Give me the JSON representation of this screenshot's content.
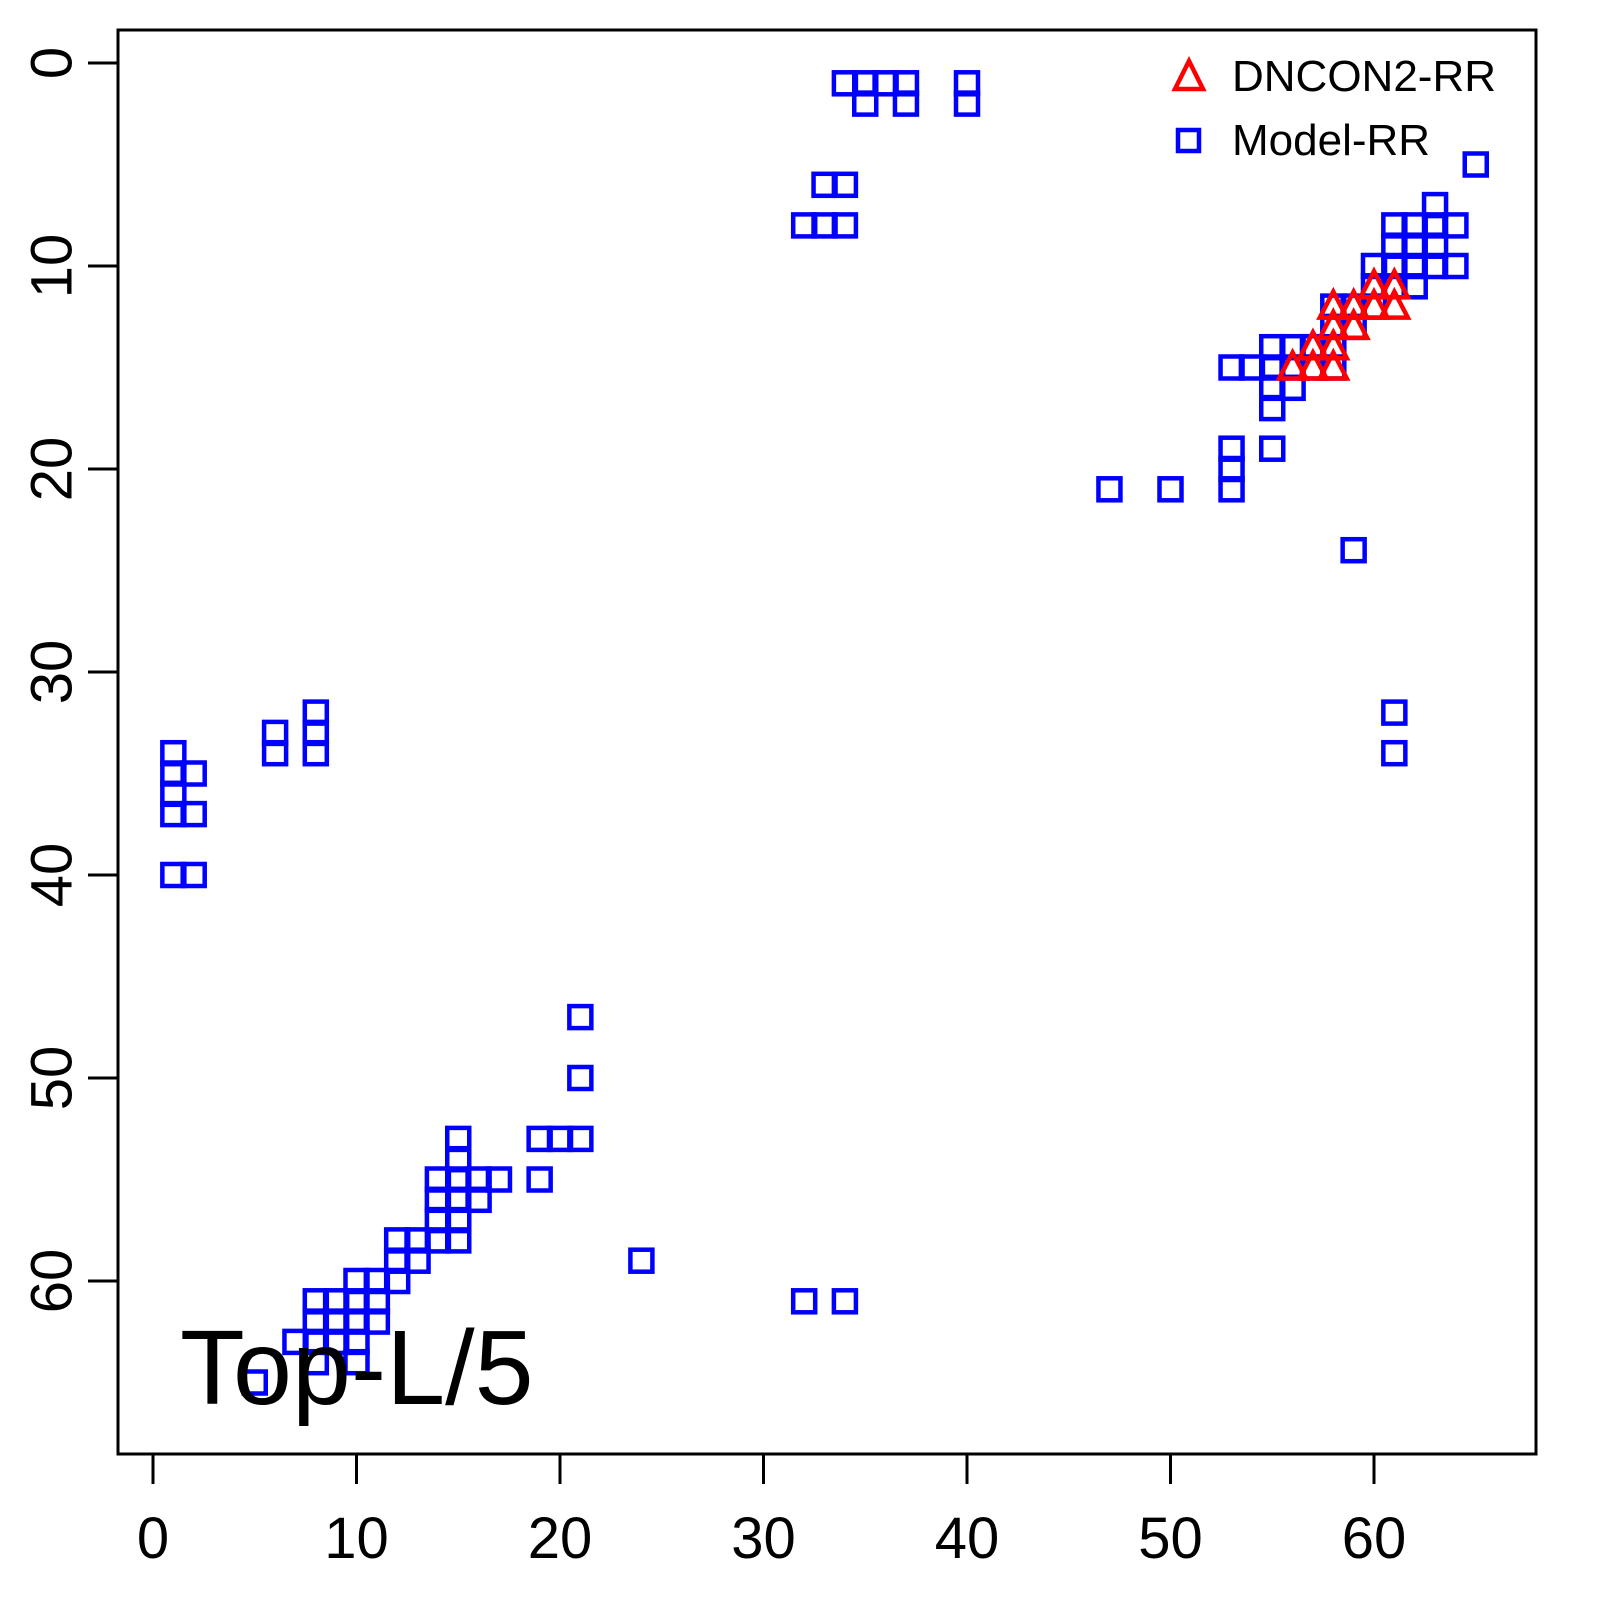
{
  "figure": {
    "title_label": "Top-L/5",
    "background_color": "#FFFFFF",
    "frame_color": "#000000"
  },
  "legend": {
    "position": "top-right",
    "items": [
      {
        "label": "DNCON2-RR",
        "marker": "triangle-open-icon",
        "color": "#FF0000"
      },
      {
        "label": "Model-RR",
        "marker": "square-open-icon",
        "color": "#0000FF"
      }
    ]
  },
  "axes": {
    "x_tick_labels": [
      "0",
      "10",
      "20",
      "30",
      "40",
      "50",
      "60"
    ],
    "y_tick_labels": [
      "0",
      "10",
      "20",
      "30",
      "40",
      "50",
      "60"
    ]
  },
  "chart_data": {
    "type": "scatter",
    "title": "Top-L/5",
    "xlabel": "",
    "ylabel": "",
    "x_ticks": [
      0,
      10,
      20,
      30,
      40,
      50,
      60
    ],
    "y_ticks": [
      0,
      10,
      20,
      30,
      40,
      50,
      60
    ],
    "xlim": [
      -1.7,
      68
    ],
    "ylim": [
      68.5,
      -1.6
    ],
    "y_axis_reversed": true,
    "grid": false,
    "legend_position": "top-right",
    "series": [
      {
        "name": "DNCON2-RR",
        "marker": "triangle",
        "color": "#FF0000",
        "points": [
          [
            60,
            11
          ],
          [
            61,
            11
          ],
          [
            58,
            12
          ],
          [
            59,
            12
          ],
          [
            60,
            12
          ],
          [
            61,
            12
          ],
          [
            58,
            13
          ],
          [
            59,
            13
          ],
          [
            57,
            14
          ],
          [
            58,
            14
          ],
          [
            56,
            15
          ],
          [
            57,
            15
          ],
          [
            58,
            15
          ]
        ]
      },
      {
        "name": "Model-RR",
        "marker": "square",
        "color": "#0000FF",
        "points": [
          [
            34,
            1
          ],
          [
            35,
            1
          ],
          [
            36,
            1
          ],
          [
            37,
            1
          ],
          [
            40,
            1
          ],
          [
            35,
            2
          ],
          [
            37,
            2
          ],
          [
            40,
            2
          ],
          [
            33,
            6
          ],
          [
            34,
            6
          ],
          [
            32,
            8
          ],
          [
            33,
            8
          ],
          [
            34,
            8
          ],
          [
            65,
            5
          ],
          [
            63,
            7
          ],
          [
            61,
            8
          ],
          [
            62,
            8
          ],
          [
            63,
            8
          ],
          [
            64,
            8
          ],
          [
            61,
            9
          ],
          [
            62,
            9
          ],
          [
            63,
            9
          ],
          [
            60,
            10
          ],
          [
            61,
            10
          ],
          [
            62,
            10
          ],
          [
            63,
            10
          ],
          [
            64,
            10
          ],
          [
            60,
            11
          ],
          [
            61,
            11
          ],
          [
            62,
            11
          ],
          [
            58,
            12
          ],
          [
            59,
            12
          ],
          [
            60,
            12
          ],
          [
            58,
            13
          ],
          [
            59,
            13
          ],
          [
            55,
            14
          ],
          [
            56,
            14
          ],
          [
            57,
            14
          ],
          [
            58,
            14
          ],
          [
            53,
            15
          ],
          [
            54,
            15
          ],
          [
            55,
            15
          ],
          [
            56,
            15
          ],
          [
            57,
            15
          ],
          [
            58,
            15
          ],
          [
            55,
            16
          ],
          [
            56,
            16
          ],
          [
            55,
            17
          ],
          [
            53,
            19
          ],
          [
            55,
            19
          ],
          [
            53,
            20
          ],
          [
            53,
            21
          ],
          [
            47,
            21
          ],
          [
            50,
            21
          ],
          [
            59,
            24
          ],
          [
            61,
            32
          ],
          [
            61,
            34
          ],
          [
            1,
            34
          ],
          [
            1,
            35
          ],
          [
            2,
            35
          ],
          [
            1,
            36
          ],
          [
            1,
            37
          ],
          [
            2,
            37
          ],
          [
            1,
            40
          ],
          [
            2,
            40
          ],
          [
            6,
            33
          ],
          [
            6,
            34
          ],
          [
            8,
            32
          ],
          [
            8,
            33
          ],
          [
            8,
            34
          ],
          [
            21,
            47
          ],
          [
            21,
            50
          ],
          [
            15,
            53
          ],
          [
            19,
            53
          ],
          [
            20,
            53
          ],
          [
            21,
            53
          ],
          [
            15,
            54
          ],
          [
            19,
            55
          ],
          [
            24,
            59
          ],
          [
            32,
            61
          ],
          [
            34,
            61
          ],
          [
            5,
            65
          ],
          [
            7,
            63
          ],
          [
            8,
            61
          ],
          [
            8,
            62
          ],
          [
            8,
            63
          ],
          [
            8,
            64
          ],
          [
            9,
            61
          ],
          [
            9,
            62
          ],
          [
            9,
            63
          ],
          [
            10,
            60
          ],
          [
            10,
            61
          ],
          [
            10,
            62
          ],
          [
            10,
            63
          ],
          [
            10,
            64
          ],
          [
            11,
            60
          ],
          [
            11,
            61
          ],
          [
            11,
            62
          ],
          [
            12,
            58
          ],
          [
            12,
            59
          ],
          [
            12,
            60
          ],
          [
            13,
            58
          ],
          [
            13,
            59
          ],
          [
            14,
            55
          ],
          [
            14,
            56
          ],
          [
            14,
            57
          ],
          [
            14,
            58
          ],
          [
            15,
            55
          ],
          [
            15,
            56
          ],
          [
            15,
            57
          ],
          [
            15,
            58
          ],
          [
            16,
            55
          ],
          [
            16,
            56
          ],
          [
            17,
            55
          ]
        ]
      }
    ]
  }
}
